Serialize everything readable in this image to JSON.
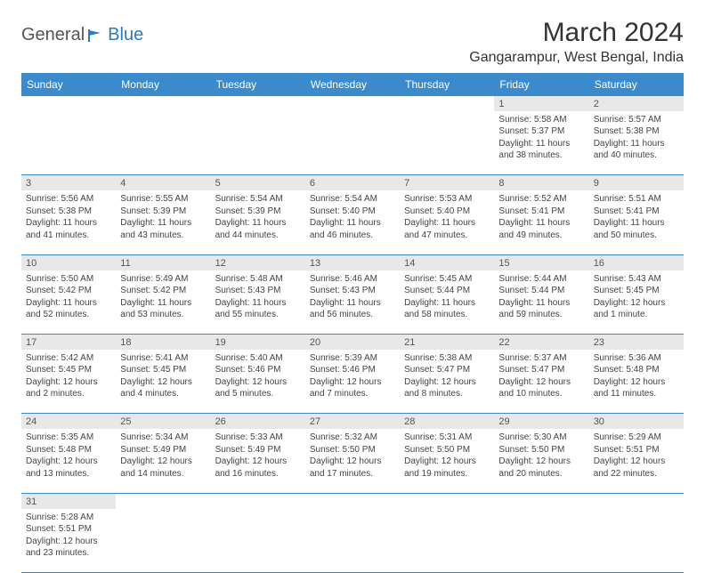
{
  "logo": {
    "text1": "General",
    "text2": "Blue"
  },
  "title": "March 2024",
  "subtitle": "Gangarampur, West Bengal, India",
  "colors": {
    "header_bg": "#3b8acb",
    "header_text": "#ffffff",
    "daynum_bg": "#e8e8e8",
    "border": "#3b8acb",
    "logo_accent": "#2b7ac4",
    "body_bg": "#ffffff",
    "text": "#444444"
  },
  "weekdays": [
    "Sunday",
    "Monday",
    "Tuesday",
    "Wednesday",
    "Thursday",
    "Friday",
    "Saturday"
  ],
  "weeks": [
    [
      null,
      null,
      null,
      null,
      null,
      {
        "day": "1",
        "sunrise": "Sunrise: 5:58 AM",
        "sunset": "Sunset: 5:37 PM",
        "daylight": "Daylight: 11 hours and 38 minutes."
      },
      {
        "day": "2",
        "sunrise": "Sunrise: 5:57 AM",
        "sunset": "Sunset: 5:38 PM",
        "daylight": "Daylight: 11 hours and 40 minutes."
      }
    ],
    [
      {
        "day": "3",
        "sunrise": "Sunrise: 5:56 AM",
        "sunset": "Sunset: 5:38 PM",
        "daylight": "Daylight: 11 hours and 41 minutes."
      },
      {
        "day": "4",
        "sunrise": "Sunrise: 5:55 AM",
        "sunset": "Sunset: 5:39 PM",
        "daylight": "Daylight: 11 hours and 43 minutes."
      },
      {
        "day": "5",
        "sunrise": "Sunrise: 5:54 AM",
        "sunset": "Sunset: 5:39 PM",
        "daylight": "Daylight: 11 hours and 44 minutes."
      },
      {
        "day": "6",
        "sunrise": "Sunrise: 5:54 AM",
        "sunset": "Sunset: 5:40 PM",
        "daylight": "Daylight: 11 hours and 46 minutes."
      },
      {
        "day": "7",
        "sunrise": "Sunrise: 5:53 AM",
        "sunset": "Sunset: 5:40 PM",
        "daylight": "Daylight: 11 hours and 47 minutes."
      },
      {
        "day": "8",
        "sunrise": "Sunrise: 5:52 AM",
        "sunset": "Sunset: 5:41 PM",
        "daylight": "Daylight: 11 hours and 49 minutes."
      },
      {
        "day": "9",
        "sunrise": "Sunrise: 5:51 AM",
        "sunset": "Sunset: 5:41 PM",
        "daylight": "Daylight: 11 hours and 50 minutes."
      }
    ],
    [
      {
        "day": "10",
        "sunrise": "Sunrise: 5:50 AM",
        "sunset": "Sunset: 5:42 PM",
        "daylight": "Daylight: 11 hours and 52 minutes."
      },
      {
        "day": "11",
        "sunrise": "Sunrise: 5:49 AM",
        "sunset": "Sunset: 5:42 PM",
        "daylight": "Daylight: 11 hours and 53 minutes."
      },
      {
        "day": "12",
        "sunrise": "Sunrise: 5:48 AM",
        "sunset": "Sunset: 5:43 PM",
        "daylight": "Daylight: 11 hours and 55 minutes."
      },
      {
        "day": "13",
        "sunrise": "Sunrise: 5:46 AM",
        "sunset": "Sunset: 5:43 PM",
        "daylight": "Daylight: 11 hours and 56 minutes."
      },
      {
        "day": "14",
        "sunrise": "Sunrise: 5:45 AM",
        "sunset": "Sunset: 5:44 PM",
        "daylight": "Daylight: 11 hours and 58 minutes."
      },
      {
        "day": "15",
        "sunrise": "Sunrise: 5:44 AM",
        "sunset": "Sunset: 5:44 PM",
        "daylight": "Daylight: 11 hours and 59 minutes."
      },
      {
        "day": "16",
        "sunrise": "Sunrise: 5:43 AM",
        "sunset": "Sunset: 5:45 PM",
        "daylight": "Daylight: 12 hours and 1 minute."
      }
    ],
    [
      {
        "day": "17",
        "sunrise": "Sunrise: 5:42 AM",
        "sunset": "Sunset: 5:45 PM",
        "daylight": "Daylight: 12 hours and 2 minutes."
      },
      {
        "day": "18",
        "sunrise": "Sunrise: 5:41 AM",
        "sunset": "Sunset: 5:45 PM",
        "daylight": "Daylight: 12 hours and 4 minutes."
      },
      {
        "day": "19",
        "sunrise": "Sunrise: 5:40 AM",
        "sunset": "Sunset: 5:46 PM",
        "daylight": "Daylight: 12 hours and 5 minutes."
      },
      {
        "day": "20",
        "sunrise": "Sunrise: 5:39 AM",
        "sunset": "Sunset: 5:46 PM",
        "daylight": "Daylight: 12 hours and 7 minutes."
      },
      {
        "day": "21",
        "sunrise": "Sunrise: 5:38 AM",
        "sunset": "Sunset: 5:47 PM",
        "daylight": "Daylight: 12 hours and 8 minutes."
      },
      {
        "day": "22",
        "sunrise": "Sunrise: 5:37 AM",
        "sunset": "Sunset: 5:47 PM",
        "daylight": "Daylight: 12 hours and 10 minutes."
      },
      {
        "day": "23",
        "sunrise": "Sunrise: 5:36 AM",
        "sunset": "Sunset: 5:48 PM",
        "daylight": "Daylight: 12 hours and 11 minutes."
      }
    ],
    [
      {
        "day": "24",
        "sunrise": "Sunrise: 5:35 AM",
        "sunset": "Sunset: 5:48 PM",
        "daylight": "Daylight: 12 hours and 13 minutes."
      },
      {
        "day": "25",
        "sunrise": "Sunrise: 5:34 AM",
        "sunset": "Sunset: 5:49 PM",
        "daylight": "Daylight: 12 hours and 14 minutes."
      },
      {
        "day": "26",
        "sunrise": "Sunrise: 5:33 AM",
        "sunset": "Sunset: 5:49 PM",
        "daylight": "Daylight: 12 hours and 16 minutes."
      },
      {
        "day": "27",
        "sunrise": "Sunrise: 5:32 AM",
        "sunset": "Sunset: 5:50 PM",
        "daylight": "Daylight: 12 hours and 17 minutes."
      },
      {
        "day": "28",
        "sunrise": "Sunrise: 5:31 AM",
        "sunset": "Sunset: 5:50 PM",
        "daylight": "Daylight: 12 hours and 19 minutes."
      },
      {
        "day": "29",
        "sunrise": "Sunrise: 5:30 AM",
        "sunset": "Sunset: 5:50 PM",
        "daylight": "Daylight: 12 hours and 20 minutes."
      },
      {
        "day": "30",
        "sunrise": "Sunrise: 5:29 AM",
        "sunset": "Sunset: 5:51 PM",
        "daylight": "Daylight: 12 hours and 22 minutes."
      }
    ],
    [
      {
        "day": "31",
        "sunrise": "Sunrise: 5:28 AM",
        "sunset": "Sunset: 5:51 PM",
        "daylight": "Daylight: 12 hours and 23 minutes."
      },
      null,
      null,
      null,
      null,
      null,
      null
    ]
  ]
}
